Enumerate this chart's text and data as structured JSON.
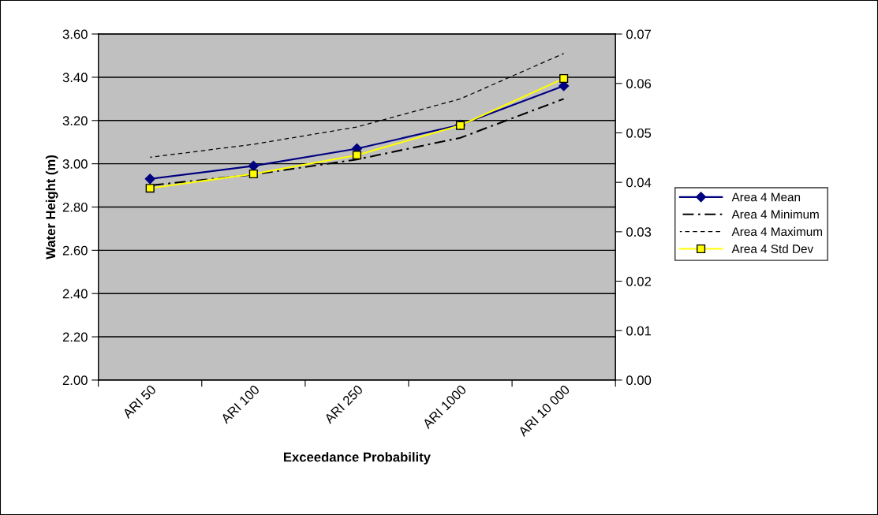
{
  "chart_data": {
    "type": "line",
    "xlabel": "Exceedance Probability",
    "ylabel": "Water Height (m)",
    "categories": [
      "ARI 50",
      "ARI 100",
      "ARI 250",
      "ARI 1000",
      "ARI 10 000"
    ],
    "series": [
      {
        "name": "Area 4 Mean",
        "color": "#000080",
        "marker": "diamond",
        "line_style": "solid",
        "values": [
          2.93,
          2.99,
          3.07,
          3.18,
          3.36
        ]
      },
      {
        "name": "Area 4 Minimum",
        "color": "#000000",
        "marker": "none",
        "line_style": "dashdot",
        "values": [
          2.9,
          2.95,
          3.02,
          3.12,
          3.3
        ]
      },
      {
        "name": "Area 4 Maximum",
        "color": "#000000",
        "marker": "none",
        "line_style": "dashed",
        "values": [
          3.03,
          3.09,
          3.17,
          3.3,
          3.51
        ]
      },
      {
        "name": "Area 4 Std Dev",
        "color": "#ffff00",
        "marker": "square",
        "line_style": "solid",
        "axis": "y2",
        "values": [
          0.0388,
          0.0417,
          0.0455,
          0.0515,
          0.061
        ]
      }
    ],
    "ylim": [
      2.0,
      3.6
    ],
    "yticks": [
      {
        "value": 2.0,
        "label": "2.00"
      },
      {
        "value": 2.2,
        "label": "2.20"
      },
      {
        "value": 2.4,
        "label": "2.40"
      },
      {
        "value": 2.6,
        "label": "2.60"
      },
      {
        "value": 2.8,
        "label": "2.80"
      },
      {
        "value": 3.0,
        "label": "3.00"
      },
      {
        "value": 3.2,
        "label": "3.20"
      },
      {
        "value": 3.4,
        "label": "3.40"
      },
      {
        "value": 3.6,
        "label": "3.60"
      }
    ],
    "y2lim": [
      0,
      0.07
    ],
    "y2ticks": [
      {
        "value": 0,
        "label": "0.00"
      },
      {
        "value": 0.01,
        "label": "0.01"
      },
      {
        "value": 0.02,
        "label": "0.02"
      },
      {
        "value": 0.03,
        "label": "0.03"
      },
      {
        "value": 0.04,
        "label": "0.04"
      },
      {
        "value": 0.05,
        "label": "0.05"
      },
      {
        "value": 0.06,
        "label": "0.06"
      },
      {
        "value": 0.07,
        "label": "0.07"
      }
    ],
    "grid": "y",
    "legend": "right"
  }
}
